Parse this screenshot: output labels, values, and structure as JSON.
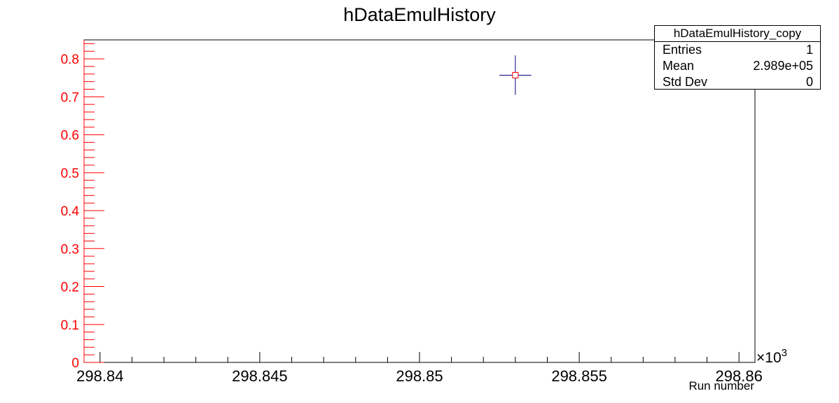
{
  "chart_data": {
    "type": "scatter",
    "title": "hDataEmulHistory",
    "xlabel": "Run number",
    "ylabel": "",
    "xlim": [
      298.8395,
      298.8605
    ],
    "ylim": [
      0,
      0.85
    ],
    "x_multiplier_label": "×10",
    "x_multiplier_exponent": "3",
    "x_ticks": [
      "298.84",
      "298.845",
      "298.85",
      "298.855",
      "298.86"
    ],
    "y_ticks": [
      "0",
      "0.1",
      "0.2",
      "0.3",
      "0.4",
      "0.5",
      "0.6",
      "0.7",
      "0.8"
    ],
    "series": [
      {
        "points": [
          {
            "x": 298.853,
            "y": 0.757,
            "xerr": 0.0005,
            "yerr": 0.052
          }
        ]
      }
    ],
    "grid": false,
    "y_axis_color": "#ff0000",
    "marker_color": "#ff0000",
    "error_bar_color": "#000080"
  },
  "stats": {
    "title": "hDataEmulHistory_copy",
    "rows": [
      {
        "label": "Entries",
        "value": "1"
      },
      {
        "label": "Mean",
        "value": "2.989e+05"
      },
      {
        "label": "Std Dev",
        "value": "0"
      }
    ]
  }
}
